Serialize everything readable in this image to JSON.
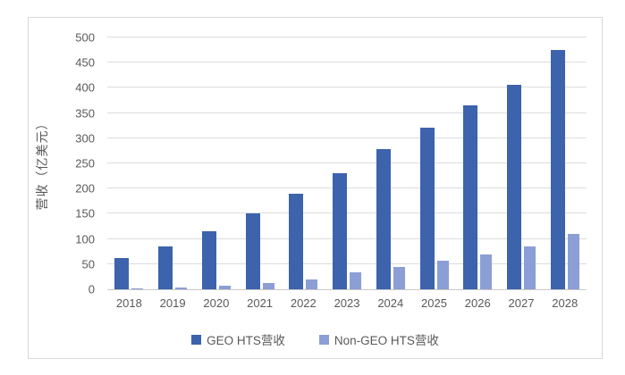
{
  "chart_data": {
    "type": "bar",
    "title": "",
    "xlabel": "",
    "ylabel": "营收（亿美元）",
    "ylim": [
      0,
      500
    ],
    "ytick_step": 50,
    "y_ticks": [
      0,
      50,
      100,
      150,
      200,
      250,
      300,
      350,
      400,
      450,
      500
    ],
    "categories": [
      "2018",
      "2019",
      "2020",
      "2021",
      "2022",
      "2023",
      "2024",
      "2025",
      "2026",
      "2027",
      "2028"
    ],
    "series": [
      {
        "key": "geo-hts",
        "name": "GEO HTS营收",
        "color": "#3C63AC",
        "values": [
          62,
          85,
          116,
          150,
          189,
          231,
          278,
          321,
          365,
          406,
          475
        ]
      },
      {
        "key": "non-geo-hts",
        "name": "Non-GEO HTS营收",
        "color": "#8C9ED6",
        "values": [
          2,
          3,
          7,
          12,
          19,
          33,
          45,
          56,
          70,
          86,
          110
        ]
      }
    ],
    "grid": "horizontal",
    "legend_position": "bottom"
  },
  "colors": {
    "gridline": "#dcdcdc",
    "axis_line": "#c8c8c8",
    "axis_text": "#595959",
    "panel_border": "#d8d8d8",
    "background": "#ffffff"
  }
}
